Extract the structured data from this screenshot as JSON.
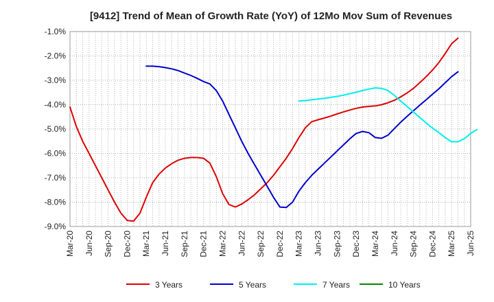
{
  "chart_data": {
    "type": "line",
    "title": "[9412]  Trend of Mean of Growth Rate (YoY) of 12Mo Mov Sum of Revenues",
    "xlabel": "",
    "ylabel": "",
    "ylim": [
      -9.0,
      -1.0
    ],
    "yticks": [
      -9.0,
      -8.0,
      -7.0,
      -6.0,
      -5.0,
      -4.0,
      -3.0,
      -2.0,
      -1.0
    ],
    "ytick_labels": [
      "-9.0%",
      "-8.0%",
      "-7.0%",
      "-6.0%",
      "-5.0%",
      "-4.0%",
      "-3.0%",
      "-2.0%",
      "-1.0%"
    ],
    "x_ticks": [
      "Mar-20",
      "Jun-20",
      "Sep-20",
      "Dec-20",
      "Mar-21",
      "Jun-21",
      "Sep-21",
      "Dec-21",
      "Mar-22",
      "Jun-22",
      "Sep-22",
      "Dec-22",
      "Mar-23",
      "Jun-23",
      "Sep-23",
      "Dec-23",
      "Mar-24",
      "Jun-24",
      "Sep-24",
      "Dec-24",
      "Mar-25",
      "Jun-25"
    ],
    "x_start": "Mar-20",
    "grid": true,
    "legend_position": "bottom",
    "series": [
      {
        "name": "3 Years",
        "color": "#dd0000",
        "start_index": 0,
        "values": [
          -4.1,
          -4.9,
          -5.5,
          -6.0,
          -6.5,
          -7.0,
          -7.5,
          -8.0,
          -8.45,
          -8.75,
          -8.78,
          -8.45,
          -7.8,
          -7.2,
          -6.85,
          -6.6,
          -6.42,
          -6.28,
          -6.2,
          -6.17,
          -6.17,
          -6.2,
          -6.4,
          -6.95,
          -7.65,
          -8.1,
          -8.2,
          -8.08,
          -7.9,
          -7.7,
          -7.45,
          -7.2,
          -6.9,
          -6.55,
          -6.2,
          -5.8,
          -5.35,
          -4.95,
          -4.7,
          -4.62,
          -4.55,
          -4.47,
          -4.38,
          -4.3,
          -4.22,
          -4.15,
          -4.1,
          -4.07,
          -4.05,
          -4.0,
          -3.92,
          -3.82,
          -3.68,
          -3.52,
          -3.33,
          -3.1,
          -2.85,
          -2.58,
          -2.27,
          -1.9,
          -1.5,
          -1.27
        ]
      },
      {
        "name": "5 Years",
        "color": "#0000cc",
        "start_index": 12,
        "values": [
          -2.42,
          -2.42,
          -2.44,
          -2.48,
          -2.53,
          -2.6,
          -2.7,
          -2.8,
          -2.92,
          -3.05,
          -3.15,
          -3.42,
          -3.85,
          -4.4,
          -4.95,
          -5.5,
          -6.0,
          -6.45,
          -6.9,
          -7.35,
          -7.8,
          -8.2,
          -8.22,
          -8.0,
          -7.55,
          -7.2,
          -6.9,
          -6.65,
          -6.4,
          -6.15,
          -5.9,
          -5.65,
          -5.4,
          -5.18,
          -5.1,
          -5.15,
          -5.35,
          -5.38,
          -5.25,
          -4.98,
          -4.72,
          -4.48,
          -4.25,
          -4.02,
          -3.8,
          -3.57,
          -3.35,
          -3.1,
          -2.85,
          -2.65
        ]
      },
      {
        "name": "7 Years",
        "color": "#00eeee",
        "start_index": 36,
        "values": [
          -3.85,
          -3.83,
          -3.8,
          -3.77,
          -3.74,
          -3.7,
          -3.66,
          -3.61,
          -3.55,
          -3.49,
          -3.42,
          -3.36,
          -3.31,
          -3.33,
          -3.42,
          -3.62,
          -3.85,
          -4.07,
          -4.3,
          -4.53,
          -4.75,
          -4.96,
          -5.15,
          -5.35,
          -5.52,
          -5.52,
          -5.4,
          -5.18,
          -5.02
        ]
      },
      {
        "name": "10 Years",
        "color": "#008800",
        "start_index": 0,
        "values": []
      }
    ]
  }
}
